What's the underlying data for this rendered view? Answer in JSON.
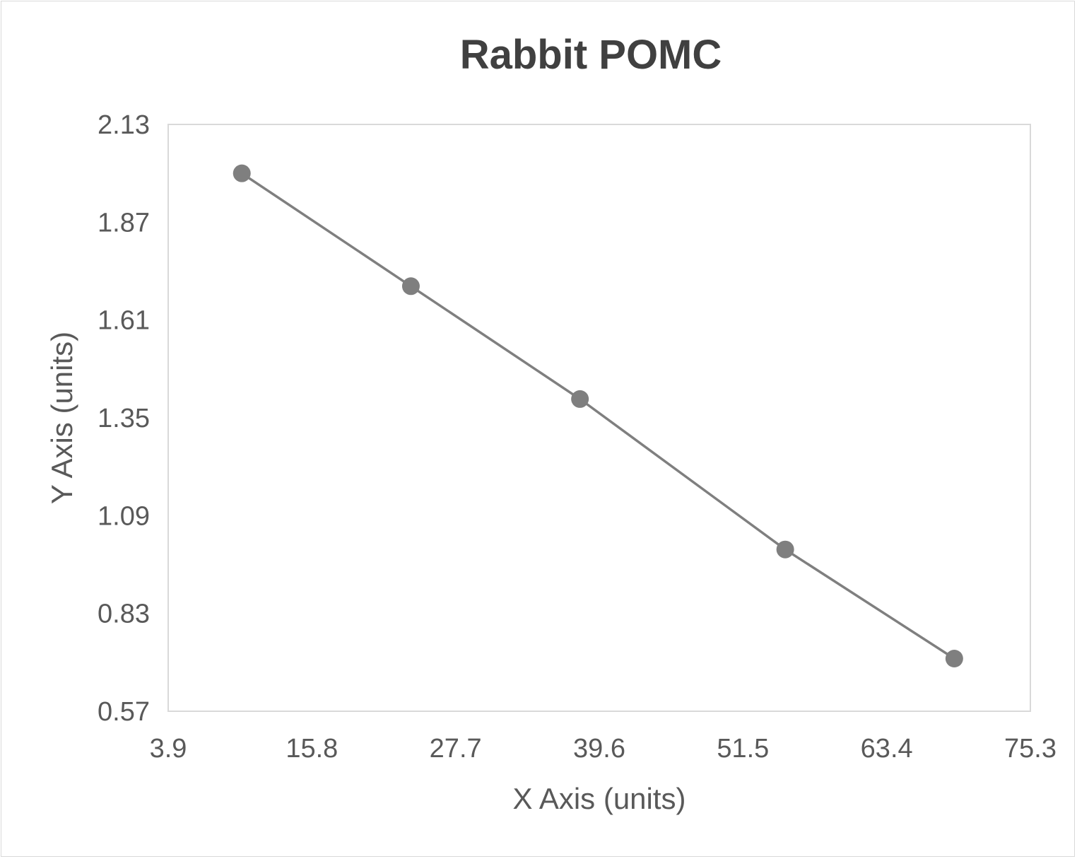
{
  "chart_data": {
    "type": "line",
    "title": "Rabbit POMC",
    "xlabel": "X Axis (units)",
    "ylabel": "Y Axis (units)",
    "xlim": [
      3.9,
      75.3
    ],
    "ylim": [
      0.57,
      2.13
    ],
    "x_ticks": [
      "3.9",
      "15.8",
      "27.7",
      "39.6",
      "51.5",
      "63.4",
      "75.3"
    ],
    "y_ticks": [
      "0.57",
      "0.83",
      "1.09",
      "1.35",
      "1.61",
      "1.87",
      "2.13"
    ],
    "grid": false,
    "legend": "none",
    "series": [
      {
        "x": [
          10,
          24,
          38,
          55,
          69
        ],
        "y": [
          2.0,
          1.7,
          1.4,
          1.0,
          0.71
        ],
        "color": "#7f7f7f",
        "markers": true
      }
    ]
  }
}
